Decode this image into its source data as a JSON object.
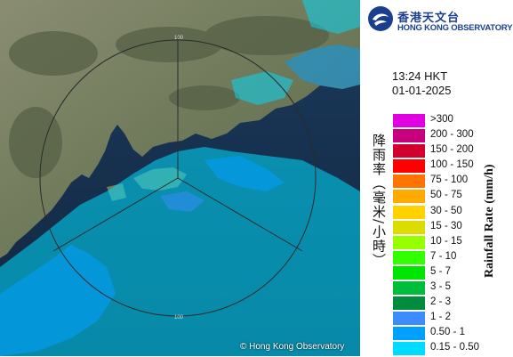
{
  "map": {
    "copyright": "© Hong Kong Observatory",
    "range_ring_labels": [
      "100",
      "100"
    ]
  },
  "header": {
    "logo_zh": "香港天文台",
    "logo_en": "HONG KONG OBSERVATORY",
    "time": "13:24 HKT",
    "date": "01-01-2025"
  },
  "legend": {
    "title_zh": "降雨率（毫米/小時）",
    "title_en": "Rainfall Rate (mm/h)",
    "items": [
      {
        "label": ">300",
        "color": "#e100e1"
      },
      {
        "label": "200 - 300",
        "color": "#c8007d"
      },
      {
        "label": "150 - 200",
        "color": "#d2002d"
      },
      {
        "label": "100 - 150",
        "color": "#ff0000"
      },
      {
        "label": "75 - 100",
        "color": "#ff7300"
      },
      {
        "label": "50 - 75",
        "color": "#ffaa00"
      },
      {
        "label": "30 - 50",
        "color": "#ffd200"
      },
      {
        "label": "15 - 30",
        "color": "#dcdc00"
      },
      {
        "label": "10 - 15",
        "color": "#96ff00"
      },
      {
        "label": "7 - 10",
        "color": "#32ff00"
      },
      {
        "label": "5 - 7",
        "color": "#00e600"
      },
      {
        "label": "3 - 5",
        "color": "#00be3c"
      },
      {
        "label": "2 - 3",
        "color": "#008c3c"
      },
      {
        "label": "1 - 2",
        "color": "#3c8cff"
      },
      {
        "label": "0.50 - 1",
        "color": "#00a0ff"
      },
      {
        "label": "0.15 - 0.50",
        "color": "#00dcff"
      }
    ]
  }
}
